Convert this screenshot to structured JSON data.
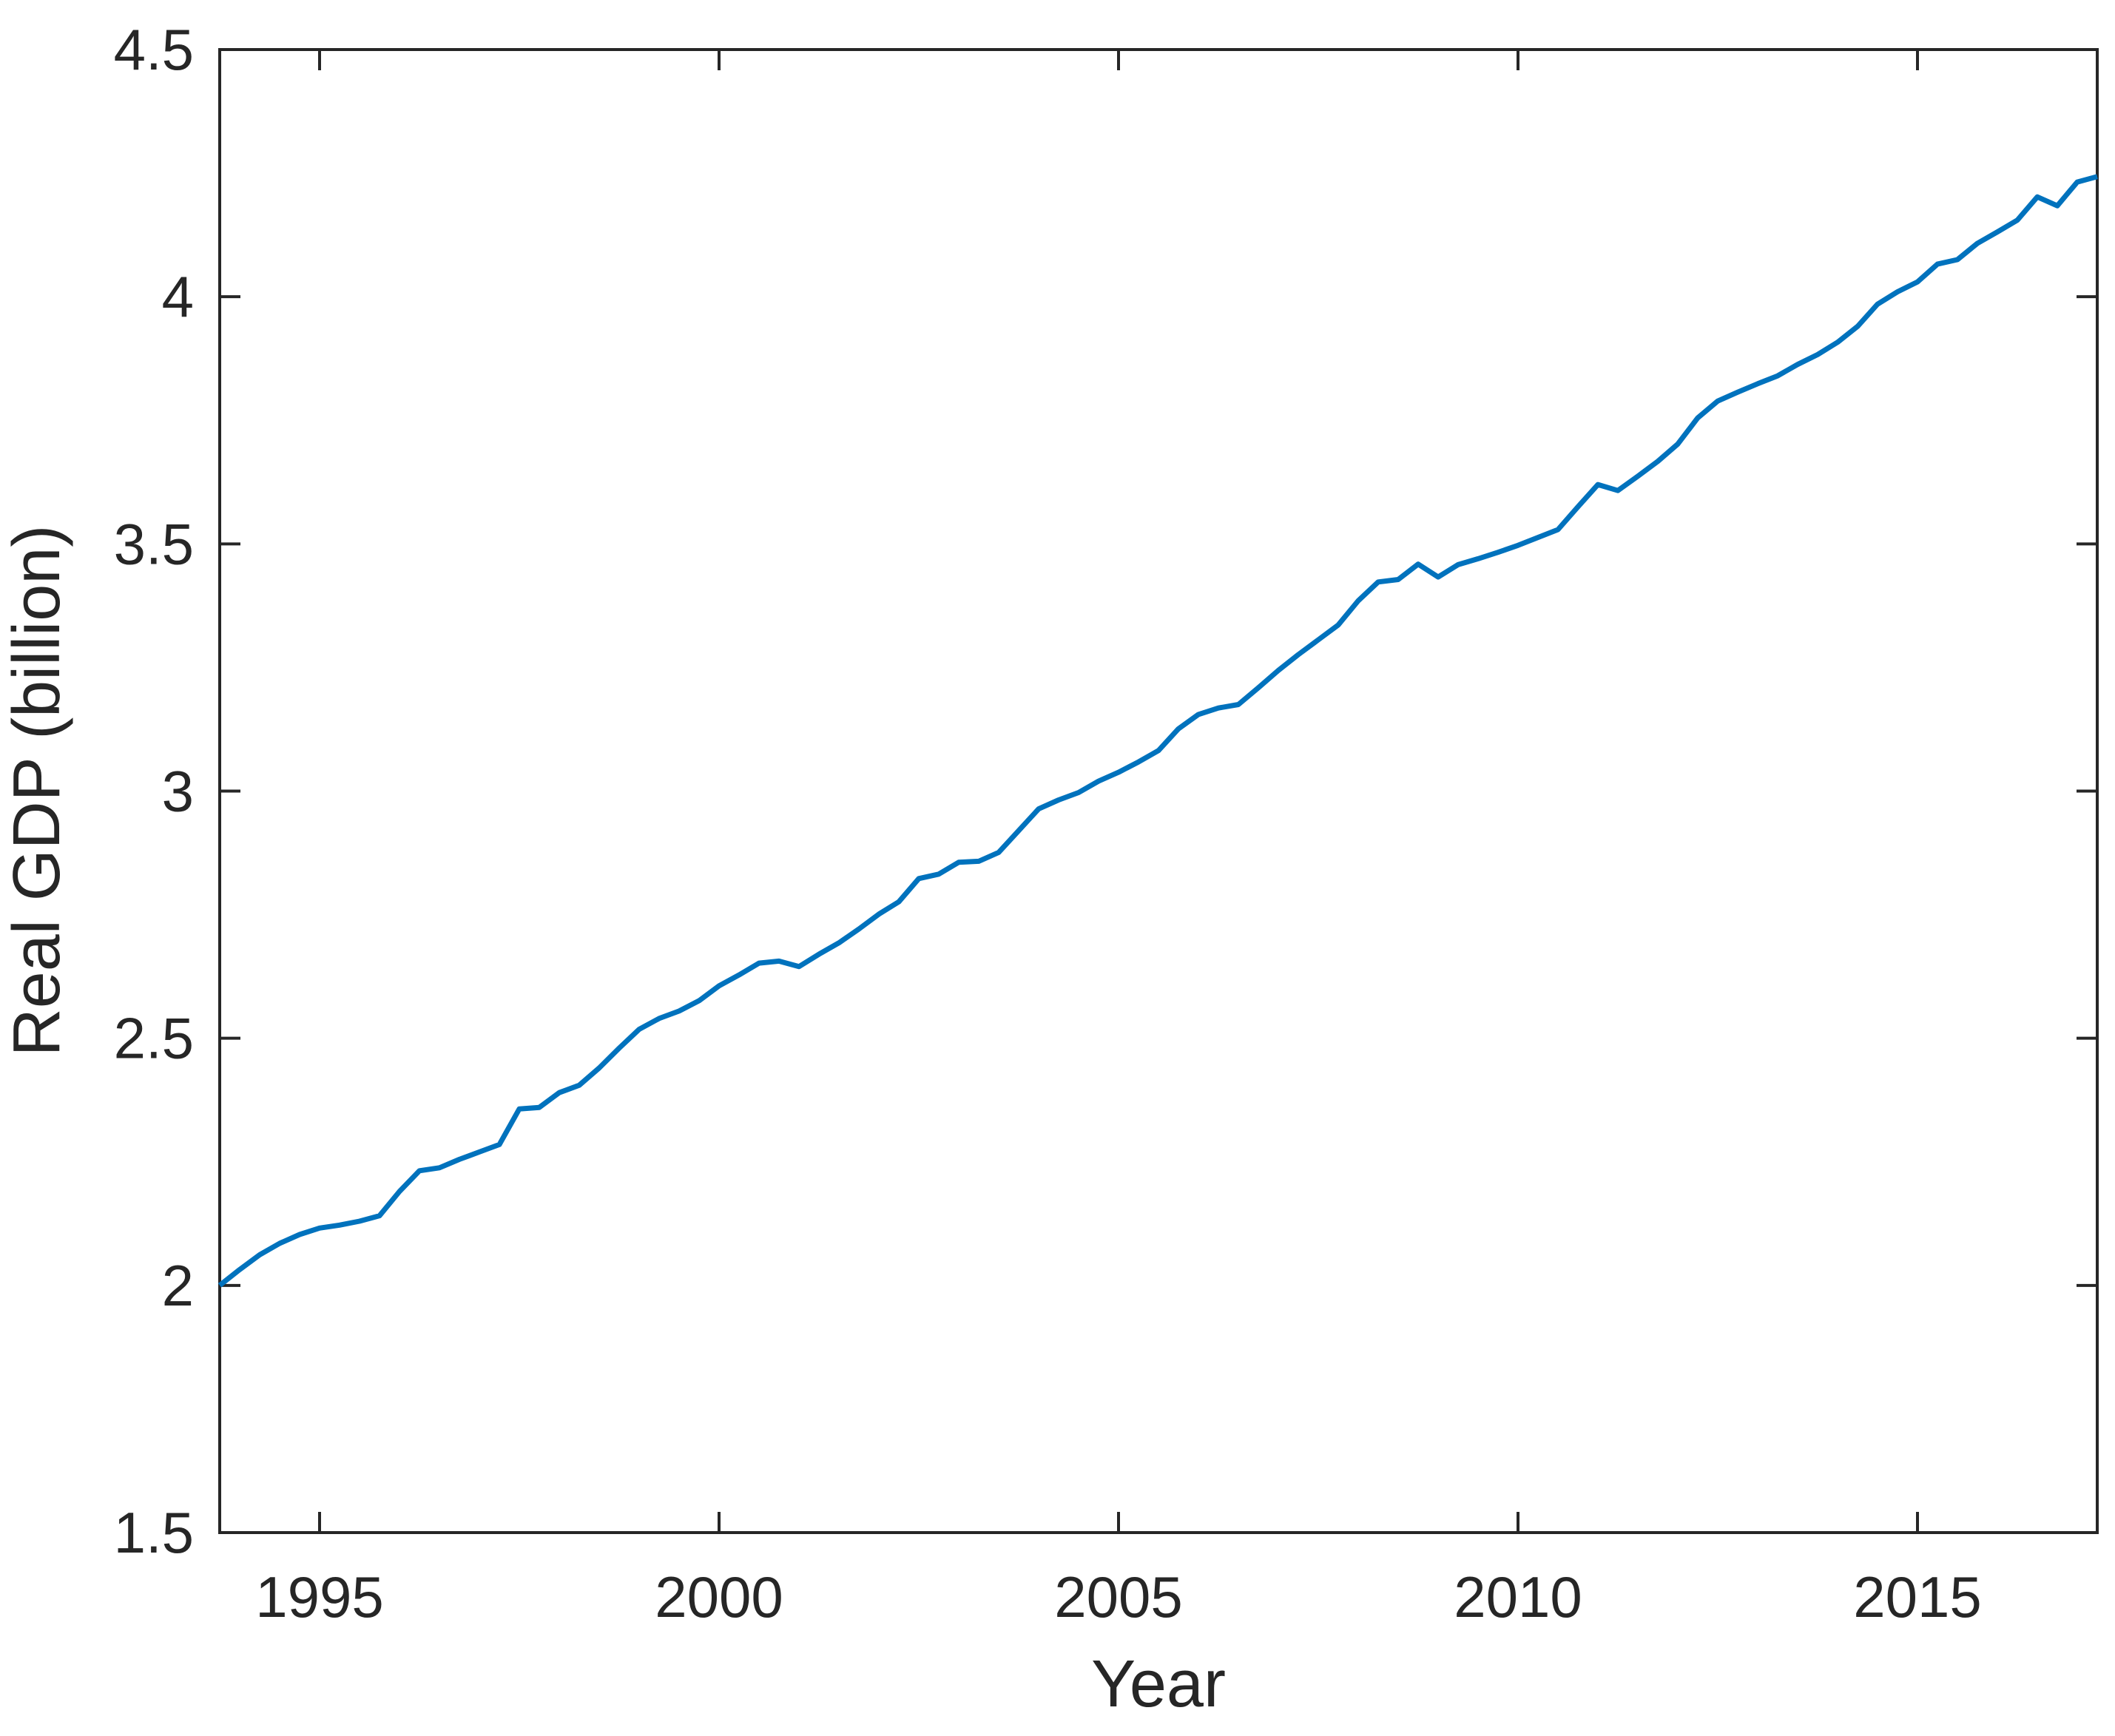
{
  "chart_data": {
    "type": "line",
    "title": "",
    "xlabel": "Year",
    "ylabel": "Real GDP (billion)",
    "xlim": [
      1993.75,
      2017.25
    ],
    "ylim": [
      1.5,
      4.5
    ],
    "xticks": [
      1995,
      2000,
      2005,
      2010,
      2015
    ],
    "yticks": [
      1.5,
      2,
      2.5,
      3,
      3.5,
      4,
      4.5
    ],
    "grid": false,
    "legend": null,
    "box": true,
    "tick_direction": "in",
    "line_color": "#0072BD",
    "axis_color": "#262626",
    "text_color": "#262626",
    "series": [
      {
        "name": "Real GDP",
        "x": [
          1993.75,
          1994.0,
          1994.25,
          1994.5,
          1994.75,
          1995.0,
          1995.25,
          1995.5,
          1995.75,
          1996.0,
          1996.25,
          1996.5,
          1996.75,
          1997.0,
          1997.25,
          1997.5,
          1997.75,
          1998.0,
          1998.25,
          1998.5,
          1998.75,
          1999.0,
          1999.25,
          1999.5,
          1999.75,
          2000.0,
          2000.25,
          2000.5,
          2000.75,
          2001.0,
          2001.25,
          2001.5,
          2001.75,
          2002.0,
          2002.25,
          2002.5,
          2002.75,
          2003.0,
          2003.25,
          2003.5,
          2003.75,
          2004.0,
          2004.25,
          2004.5,
          2004.75,
          2005.0,
          2005.25,
          2005.5,
          2005.75,
          2006.0,
          2006.25,
          2006.5,
          2006.75,
          2007.0,
          2007.25,
          2007.5,
          2007.75,
          2008.0,
          2008.25,
          2008.5,
          2008.75,
          2009.0,
          2009.25,
          2009.5,
          2009.75,
          2010.0,
          2010.25,
          2010.5,
          2010.75,
          2011.0,
          2011.25,
          2011.5,
          2011.75,
          2012.0,
          2012.25,
          2012.5,
          2012.75,
          2013.0,
          2013.25,
          2013.5,
          2013.75,
          2014.0,
          2014.25,
          2014.5,
          2014.75,
          2015.0,
          2015.25,
          2015.5,
          2015.75,
          2016.0,
          2016.25,
          2016.5,
          2016.75,
          2017.0,
          2017.25
        ],
        "values": [
          2.0,
          2.032,
          2.062,
          2.085,
          2.103,
          2.116,
          2.122,
          2.13,
          2.141,
          2.19,
          2.232,
          2.238,
          2.255,
          2.27,
          2.285,
          2.357,
          2.36,
          2.39,
          2.405,
          2.44,
          2.48,
          2.518,
          2.54,
          2.555,
          2.576,
          2.606,
          2.628,
          2.652,
          2.656,
          2.645,
          2.67,
          2.693,
          2.721,
          2.751,
          2.776,
          2.823,
          2.832,
          2.856,
          2.858,
          2.876,
          2.92,
          2.964,
          2.982,
          2.997,
          3.02,
          3.038,
          3.059,
          3.082,
          3.126,
          3.155,
          3.168,
          3.175,
          3.209,
          3.244,
          3.276,
          3.306,
          3.336,
          3.385,
          3.423,
          3.428,
          3.459,
          3.433,
          3.458,
          3.47,
          3.483,
          3.497,
          3.513,
          3.529,
          3.575,
          3.62,
          3.608,
          3.637,
          3.667,
          3.702,
          3.755,
          3.789,
          3.807,
          3.824,
          3.84,
          3.863,
          3.883,
          3.908,
          3.94,
          3.985,
          4.01,
          4.03,
          4.066,
          4.075,
          4.108,
          4.131,
          4.155,
          4.202,
          4.184,
          4.232,
          4.243
        ]
      }
    ]
  }
}
